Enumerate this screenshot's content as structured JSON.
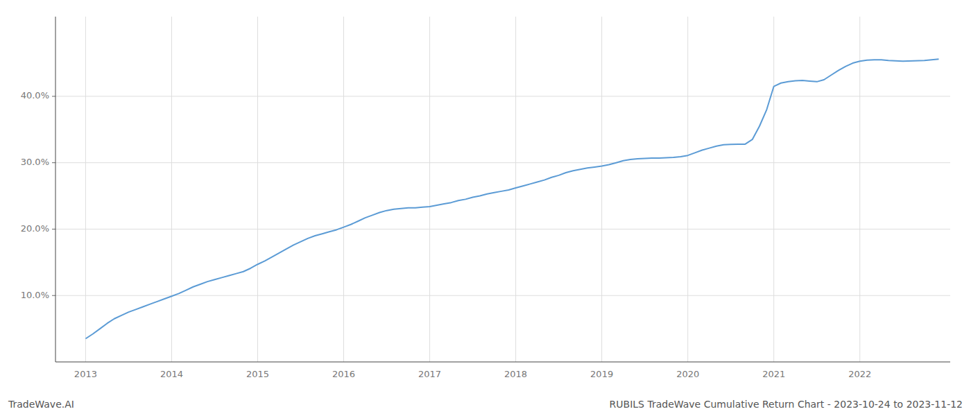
{
  "chart_data": {
    "type": "line",
    "title": "RUBILS TradeWave Cumulative Return Chart - 2023-10-24 to 2023-11-12",
    "annotations": [
      "TradeWave.AI"
    ],
    "color": "#5b9bd5",
    "grid": true,
    "x": [
      2013.0,
      2013.083,
      2013.167,
      2013.25,
      2013.333,
      2013.417,
      2013.5,
      2013.583,
      2013.667,
      2013.75,
      2013.833,
      2013.917,
      2014.0,
      2014.083,
      2014.167,
      2014.25,
      2014.333,
      2014.417,
      2014.5,
      2014.583,
      2014.667,
      2014.75,
      2014.833,
      2014.917,
      2015.0,
      2015.083,
      2015.167,
      2015.25,
      2015.333,
      2015.417,
      2015.5,
      2015.583,
      2015.667,
      2015.75,
      2015.833,
      2015.917,
      2016.0,
      2016.083,
      2016.167,
      2016.25,
      2016.333,
      2016.417,
      2016.5,
      2016.583,
      2016.667,
      2016.75,
      2016.833,
      2016.917,
      2017.0,
      2017.083,
      2017.167,
      2017.25,
      2017.333,
      2017.417,
      2017.5,
      2017.583,
      2017.667,
      2017.75,
      2017.833,
      2017.917,
      2018.0,
      2018.083,
      2018.167,
      2018.25,
      2018.333,
      2018.417,
      2018.5,
      2018.583,
      2018.667,
      2018.75,
      2018.833,
      2018.917,
      2019.0,
      2019.083,
      2019.167,
      2019.25,
      2019.333,
      2019.417,
      2019.5,
      2019.583,
      2019.667,
      2019.75,
      2019.833,
      2019.917,
      2020.0,
      2020.083,
      2020.167,
      2020.25,
      2020.333,
      2020.417,
      2020.5,
      2020.583,
      2020.667,
      2020.75,
      2020.833,
      2020.917,
      2021.0,
      2021.083,
      2021.167,
      2021.25,
      2021.333,
      2021.417,
      2021.5,
      2021.583,
      2021.667,
      2021.75,
      2021.833,
      2021.917,
      2022.0,
      2022.083,
      2022.167,
      2022.25,
      2022.333,
      2022.5,
      2022.75,
      2022.917
    ],
    "values": [
      3.5,
      4.2,
      5.0,
      5.8,
      6.5,
      7.0,
      7.5,
      7.9,
      8.3,
      8.7,
      9.1,
      9.5,
      9.9,
      10.3,
      10.8,
      11.3,
      11.7,
      12.1,
      12.4,
      12.7,
      13.0,
      13.3,
      13.6,
      14.1,
      14.7,
      15.2,
      15.8,
      16.4,
      17.0,
      17.6,
      18.1,
      18.6,
      19.0,
      19.3,
      19.6,
      19.9,
      20.3,
      20.7,
      21.2,
      21.7,
      22.1,
      22.5,
      22.8,
      23.0,
      23.1,
      23.2,
      23.2,
      23.3,
      23.4,
      23.6,
      23.8,
      24.0,
      24.3,
      24.5,
      24.8,
      25.0,
      25.3,
      25.5,
      25.7,
      25.9,
      26.2,
      26.5,
      26.8,
      27.1,
      27.4,
      27.8,
      28.1,
      28.5,
      28.8,
      29.0,
      29.2,
      29.35,
      29.5,
      29.7,
      30.0,
      30.3,
      30.5,
      30.6,
      30.65,
      30.7,
      30.7,
      30.75,
      30.8,
      30.9,
      31.1,
      31.5,
      31.9,
      32.2,
      32.5,
      32.7,
      32.75,
      32.8,
      32.8,
      33.5,
      35.5,
      38.0,
      41.5,
      42.0,
      42.2,
      42.35,
      42.4,
      42.3,
      42.2,
      42.5,
      43.2,
      43.9,
      44.5,
      45.0,
      45.3,
      45.45,
      45.5,
      45.5,
      45.4,
      45.3,
      45.4,
      45.6
    ],
    "xlim": [
      2012.65,
      2023.05
    ],
    "xticks": [
      2013,
      2014,
      2015,
      2016,
      2017,
      2018,
      2019,
      2020,
      2021,
      2022
    ],
    "ylim": [
      0,
      52
    ],
    "yticks": [
      {
        "value": 10.0,
        "label": "10.0%"
      },
      {
        "value": 20.0,
        "label": "20.0%"
      },
      {
        "value": 30.0,
        "label": "30.0%"
      },
      {
        "value": 40.0,
        "label": "40.0%"
      }
    ]
  }
}
